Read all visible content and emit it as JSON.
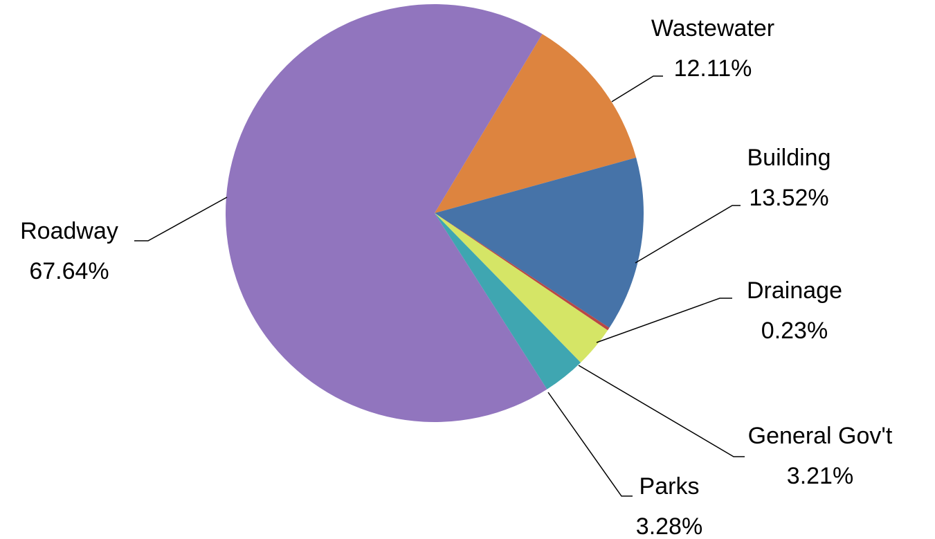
{
  "chart_data": {
    "type": "pie",
    "title": "",
    "legend": "none",
    "slices": [
      {
        "name": "Wastewater",
        "percent_label": "12.11%",
        "value": 12.11,
        "color": "#DD843F"
      },
      {
        "name": "Building",
        "percent_label": "13.52%",
        "value": 13.52,
        "color": "#4673A8"
      },
      {
        "name": "Drainage",
        "percent_label": "0.23%",
        "value": 0.23,
        "color": "#B94745"
      },
      {
        "name": "General Gov't",
        "percent_label": "3.21%",
        "value": 3.21,
        "color": "#D5E566"
      },
      {
        "name": "Parks",
        "percent_label": "3.28%",
        "value": 3.28,
        "color": "#3FA6B1"
      },
      {
        "name": "Roadway",
        "percent_label": "67.64%",
        "value": 67.64,
        "color": "#9175BE"
      }
    ]
  }
}
